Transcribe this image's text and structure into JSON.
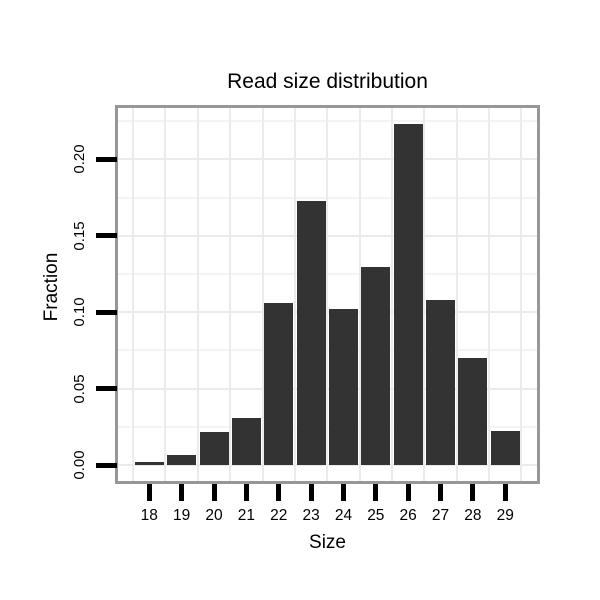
{
  "chart_data": {
    "type": "bar",
    "title": "Read size distribution",
    "xlabel": "Size",
    "ylabel": "Fraction",
    "categories": [
      "18",
      "19",
      "20",
      "21",
      "22",
      "23",
      "24",
      "25",
      "26",
      "27",
      "28",
      "29"
    ],
    "values": [
      0.0022,
      0.0065,
      0.0219,
      0.0308,
      0.1062,
      0.1728,
      0.1019,
      0.1298,
      0.223,
      0.108,
      0.0702,
      0.0222
    ],
    "y_ticks": [
      {
        "value": 0.0,
        "label": "0.00"
      },
      {
        "value": 0.05,
        "label": "0.05"
      },
      {
        "value": 0.1,
        "label": "0.10"
      },
      {
        "value": 0.15,
        "label": "0.15"
      },
      {
        "value": 0.2,
        "label": "0.20"
      }
    ],
    "y_minor_ticks": [
      0.025,
      0.075,
      0.125,
      0.175,
      0.225
    ],
    "ylim": [
      0,
      0.2336
    ],
    "grid": "horizontal major+minor and vertical category-boundary gridlines, very light gray",
    "legend": "none",
    "colors": {
      "bar_fill": "#333333",
      "frame_border": "#979797",
      "grid_major": "#ebebeb",
      "grid_minor": "#f4f4f4",
      "tick": "#000000",
      "text": "#000000",
      "background": "#ffffff"
    }
  }
}
